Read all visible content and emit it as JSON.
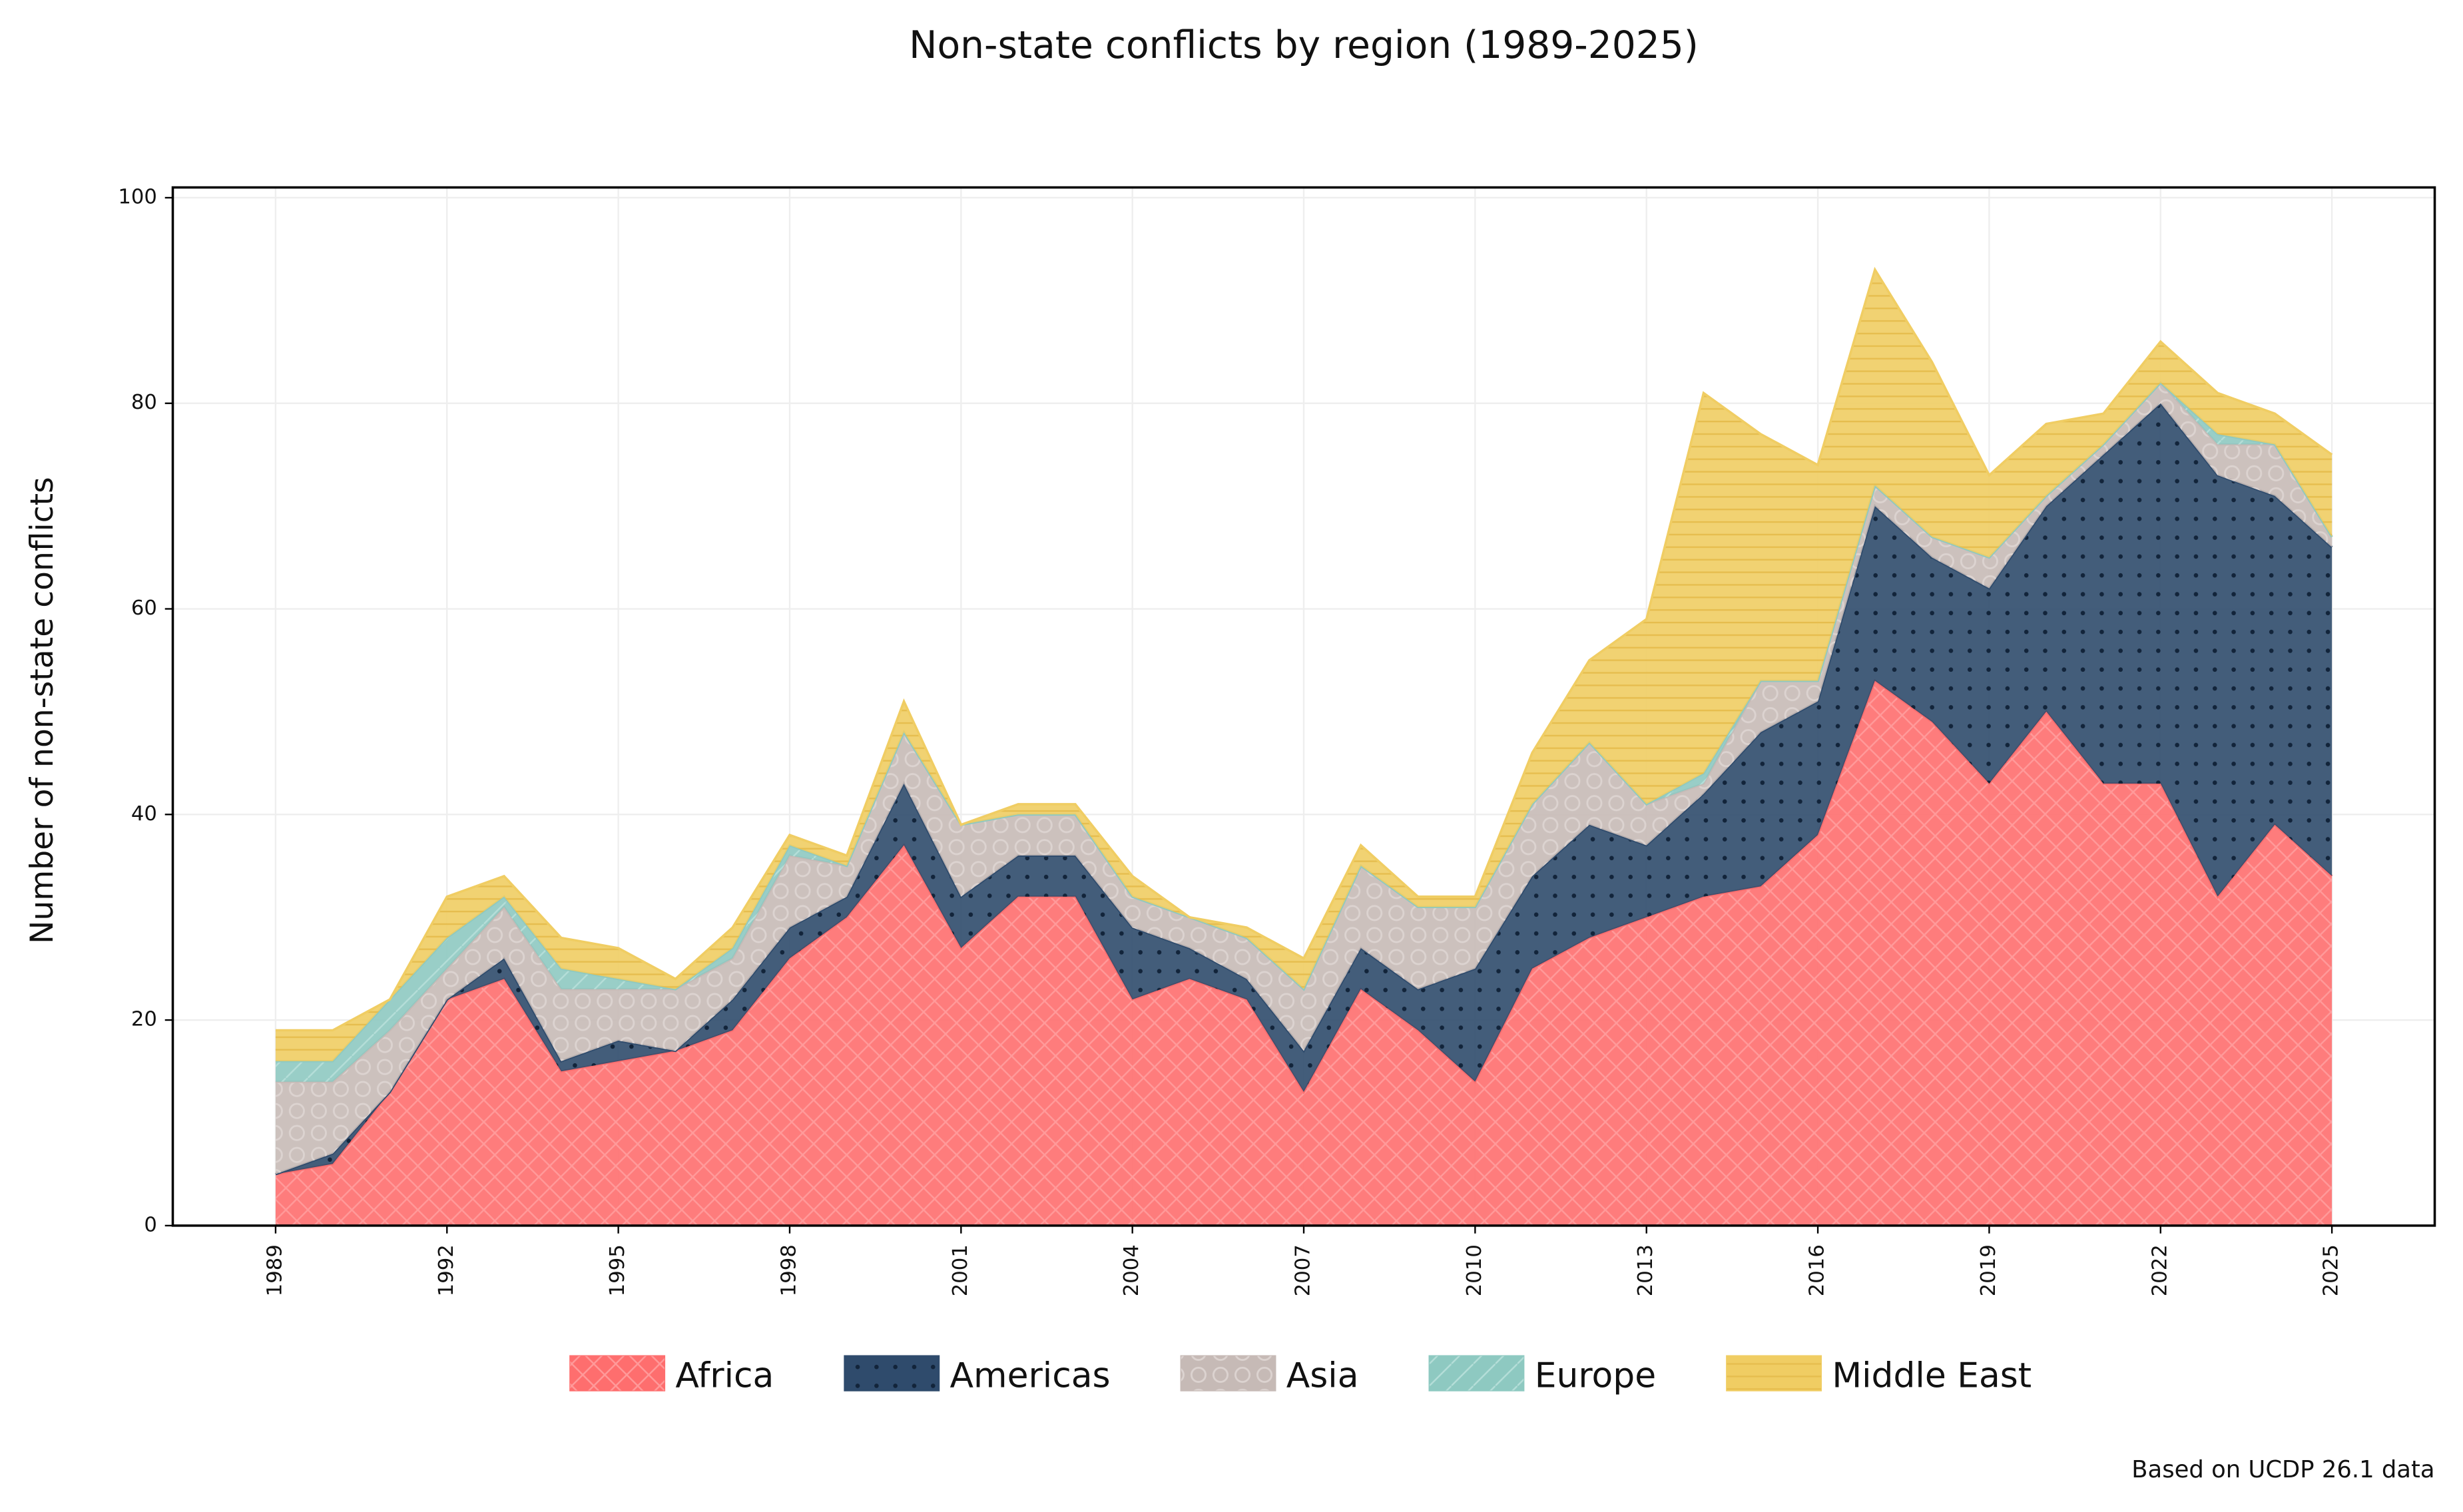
{
  "chart_data": {
    "type": "stacked-area",
    "title": "Non-state conflicts by region (1989-2025)",
    "y_label": "Number of non-state conflicts",
    "source": "Based on UCDP 26.1 data",
    "x": [
      1989,
      1990,
      1991,
      1992,
      1993,
      1994,
      1995,
      1996,
      1997,
      1998,
      1999,
      2000,
      2001,
      2002,
      2003,
      2004,
      2005,
      2006,
      2007,
      2008,
      2009,
      2010,
      2011,
      2012,
      2013,
      2014,
      2015,
      2016,
      2017,
      2018,
      2019,
      2020,
      2021,
      2022,
      2023,
      2024,
      2025
    ],
    "series": [
      {
        "name": "Africa",
        "color": "#fe6e6e",
        "values": [
          5,
          6,
          13,
          22,
          24,
          15,
          16,
          17,
          19,
          26,
          30,
          37,
          27,
          32,
          32,
          22,
          24,
          22,
          13,
          23,
          19,
          14,
          25,
          28,
          30,
          32,
          33,
          38,
          53,
          49,
          43,
          50,
          43,
          43,
          32,
          39,
          34
        ]
      },
      {
        "name": "Americas",
        "color": "#2f4b6c",
        "values": [
          0,
          1,
          0,
          0,
          2,
          1,
          2,
          0,
          3,
          3,
          2,
          6,
          5,
          4,
          4,
          7,
          3,
          2,
          4,
          4,
          4,
          11,
          9,
          11,
          7,
          10,
          15,
          13,
          17,
          16,
          19,
          20,
          32,
          37,
          41,
          32,
          32
        ]
      },
      {
        "name": "Asia",
        "color": "#c6bab6",
        "values": [
          9,
          7,
          6,
          3,
          5,
          7,
          5,
          6,
          4,
          7,
          3,
          5,
          7,
          4,
          4,
          3,
          3,
          4,
          6,
          8,
          8,
          6,
          7,
          8,
          4,
          1,
          5,
          2,
          2,
          2,
          3,
          1,
          1,
          2,
          3,
          5,
          1
        ]
      },
      {
        "name": "Europe",
        "color": "#8ec9c1",
        "values": [
          2,
          2,
          3,
          3,
          1,
          2,
          1,
          0,
          1,
          1,
          0,
          0,
          0,
          0,
          0,
          0,
          0,
          0,
          0,
          0,
          0,
          0,
          0,
          0,
          0,
          1,
          0,
          0,
          0,
          0,
          0,
          0,
          0,
          0,
          1,
          0,
          0
        ]
      },
      {
        "name": "Middle East",
        "color": "#f0cd63",
        "values": [
          3,
          3,
          0,
          4,
          2,
          3,
          3,
          1,
          2,
          1,
          1,
          3,
          0,
          1,
          1,
          2,
          0,
          1,
          3,
          2,
          1,
          1,
          5,
          8,
          18,
          37,
          24,
          21,
          21,
          17,
          8,
          7,
          3,
          4,
          4,
          3,
          8
        ]
      }
    ],
    "xlim": [
      1987.2,
      2026.8
    ],
    "xticks": [
      1989,
      1992,
      1995,
      1998,
      2001,
      2004,
      2007,
      2010,
      2013,
      2016,
      2019,
      2022,
      2025
    ],
    "ylim": [
      0,
      101
    ],
    "yticks": [
      0,
      20,
      40,
      60,
      80,
      100
    ],
    "grid": true
  }
}
